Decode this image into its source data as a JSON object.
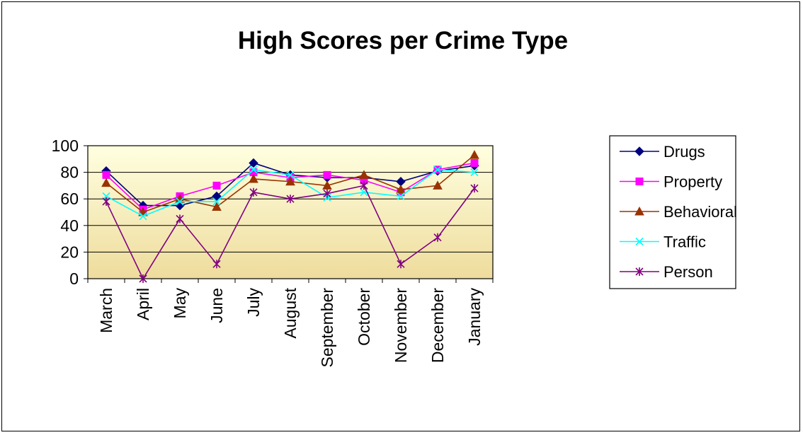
{
  "chart_data": {
    "type": "line",
    "title": "High Scores per Crime Type",
    "xlabel": "",
    "ylabel": "",
    "categories": [
      "March",
      "April",
      "May",
      "June",
      "July",
      "August",
      "September",
      "October",
      "November",
      "December",
      "January"
    ],
    "ylim": [
      0,
      100
    ],
    "yticks": [
      0,
      20,
      40,
      60,
      80,
      100
    ],
    "grid": true,
    "legend_position": "right",
    "plot_background": [
      "#ffffe0",
      "#eedc9c"
    ],
    "series": [
      {
        "name": "Drugs",
        "color": "#000080",
        "marker": "diamond",
        "values": [
          81,
          55,
          55,
          62,
          87,
          78,
          76,
          76,
          73,
          81,
          85
        ]
      },
      {
        "name": "Property",
        "color": "#ff00ff",
        "marker": "square",
        "values": [
          78,
          52,
          62,
          70,
          80,
          76,
          78,
          74,
          65,
          82,
          87
        ]
      },
      {
        "name": "Behavioral",
        "color": "#993300",
        "marker": "triangle",
        "values": [
          72,
          50,
          60,
          54,
          75,
          73,
          70,
          78,
          67,
          70,
          93
        ]
      },
      {
        "name": "Traffic",
        "color": "#00ffff",
        "marker": "x",
        "values": [
          62,
          47,
          58,
          58,
          82,
          78,
          61,
          65,
          62,
          82,
          80
        ]
      },
      {
        "name": "Person",
        "color": "#800080",
        "marker": "star",
        "values": [
          58,
          0,
          45,
          11,
          65,
          60,
          64,
          70,
          11,
          31,
          68
        ]
      }
    ]
  }
}
